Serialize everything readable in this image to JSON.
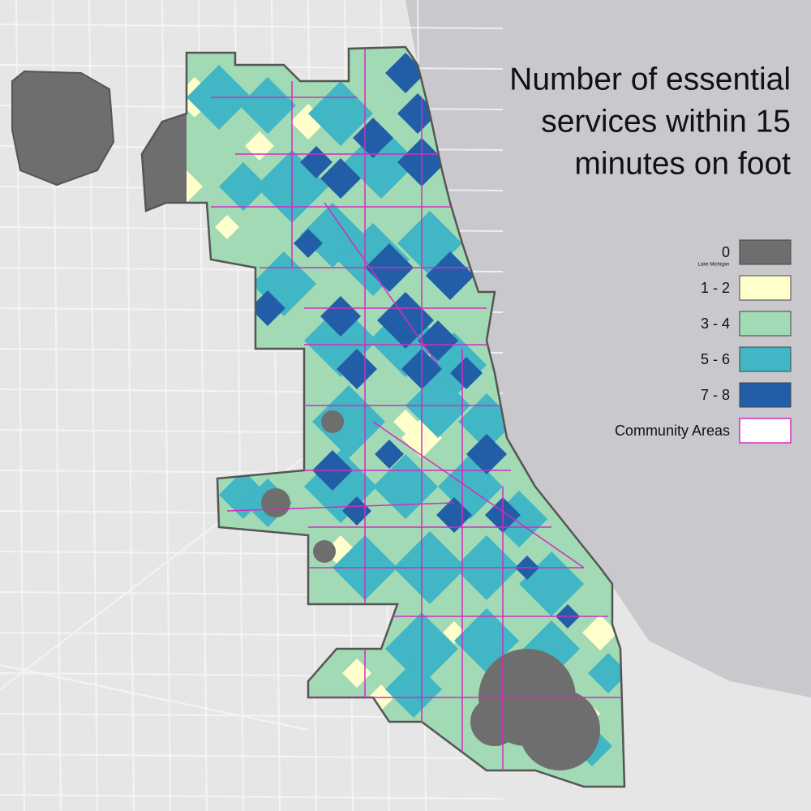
{
  "title_lines": [
    "Number of essential",
    "services within 15",
    "minutes on foot"
  ],
  "map_label": "Lake Michigan",
  "legend": [
    {
      "label": "0",
      "color": "#6e6e6e"
    },
    {
      "label": "1 - 2",
      "color": "#ffffcc"
    },
    {
      "label": "3 - 4",
      "color": "#a1dab4"
    },
    {
      "label": "5 - 6",
      "color": "#41b6c4"
    },
    {
      "label": "7 - 8",
      "color": "#225ea8"
    },
    {
      "label": "Community Areas",
      "color": "#d42cc0"
    }
  ]
}
